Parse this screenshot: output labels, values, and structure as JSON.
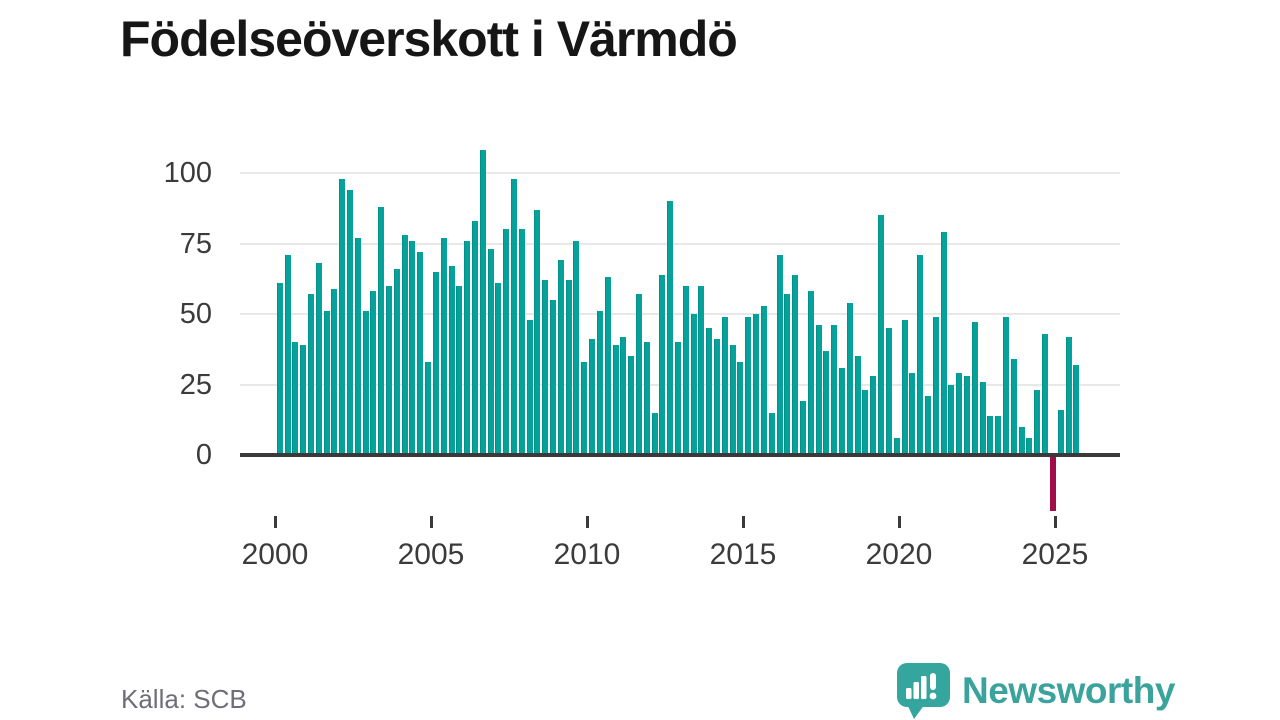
{
  "title": "Födelseöverskott i Värmdö",
  "source": "Källa: SCB",
  "logo": {
    "text": "Newsworthy",
    "icon": "newsworthy-speech-bubble-chart-icon"
  },
  "colors": {
    "bar_positive": "#04a29a",
    "bar_negative": "#a10d49",
    "axis": "#3a3a3a",
    "gridline": "#e8e8e8",
    "title_text": "#161616",
    "tick_label": "#3b3b3b",
    "source_text": "#6e6e78",
    "logo": "#3aa39b"
  },
  "chart_data": {
    "type": "bar",
    "title": "Födelseöverskott i Värmdö",
    "xlabel": "",
    "ylabel": "",
    "frequency": "quarterly",
    "start_period": "2000 Q1",
    "end_period": "2025 Q3",
    "grid": true,
    "legend": "none",
    "y_ticks": [
      0,
      25,
      50,
      75,
      100
    ],
    "ylim": [
      -20,
      110
    ],
    "x_tick_labels": [
      "2000",
      "2005",
      "2010",
      "2015",
      "2020",
      "2025"
    ],
    "series": [
      {
        "name": "Födelseöverskott",
        "values": [
          61,
          71,
          40,
          39,
          57,
          68,
          51,
          59,
          98,
          94,
          77,
          51,
          58,
          88,
          60,
          66,
          78,
          76,
          72,
          33,
          65,
          77,
          67,
          60,
          76,
          83,
          108,
          73,
          61,
          80,
          98,
          80,
          48,
          87,
          62,
          55,
          69,
          62,
          76,
          33,
          41,
          51,
          63,
          39,
          42,
          35,
          57,
          40,
          15,
          64,
          90,
          40,
          60,
          50,
          60,
          45,
          41,
          49,
          39,
          33,
          49,
          50,
          53,
          15,
          71,
          57,
          64,
          19,
          58,
          46,
          37,
          46,
          31,
          54,
          35,
          23,
          28,
          85,
          45,
          6,
          48,
          29,
          71,
          21,
          49,
          79,
          25,
          29,
          28,
          47,
          26,
          14,
          14,
          49,
          34,
          10,
          6,
          23,
          43,
          -19,
          16,
          42,
          32
        ]
      }
    ]
  }
}
